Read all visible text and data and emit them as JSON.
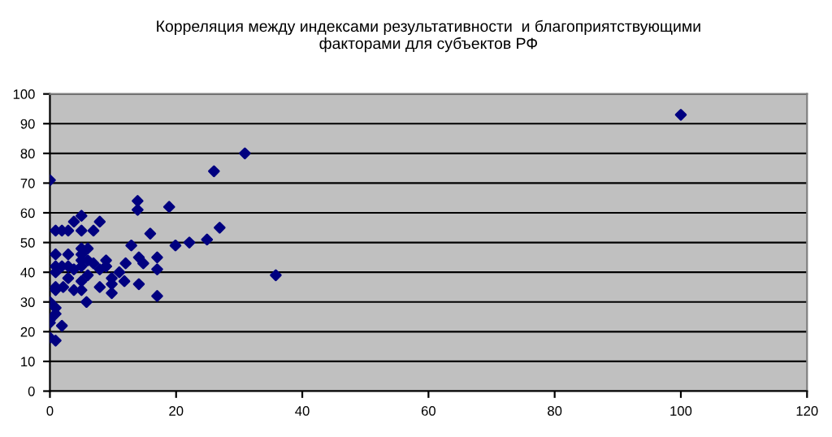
{
  "chart_data": {
    "type": "scatter",
    "title": "Корреляция между индексами результативности  и благоприятствующими\nфакторами для субъектов РФ",
    "x": [
      0,
      0,
      0,
      0,
      0,
      0.9,
      0.9,
      0.9,
      0.9,
      0.9,
      0.9,
      0.9,
      0.9,
      0.9,
      1.9,
      2.9,
      2.1,
      1.9,
      1.9,
      2.9,
      2.9,
      2.9,
      3.8,
      3.8,
      3.8,
      5,
      5,
      5,
      5,
      5,
      5,
      5,
      5,
      5.8,
      6,
      6,
      6,
      6.9,
      6.9,
      7.9,
      7.9,
      7.9,
      8.9,
      8.9,
      8.9,
      9.8,
      9.8,
      9.8,
      11,
      11.8,
      12,
      12.9,
      13.9,
      13.9,
      14.1,
      14.1,
      14.8,
      15.9,
      17,
      17,
      17,
      18.9,
      19.9,
      22.1,
      24.9,
      26,
      26.9,
      30.9,
      35.8,
      100
    ],
    "series": [
      {
        "color": "#000080",
        "values": [
          71,
          30,
          24,
          23,
          18,
          17,
          26,
          28,
          34,
          35,
          40,
          42,
          46,
          54,
          54,
          54,
          35,
          22,
          42,
          42,
          38,
          46,
          57,
          41,
          34,
          59,
          54,
          48,
          46,
          44,
          42,
          37,
          34,
          30,
          48,
          44,
          39,
          54,
          43,
          57,
          41,
          35,
          44,
          42,
          42,
          38,
          33,
          36,
          40,
          37,
          43,
          49,
          64,
          61,
          45,
          36,
          43,
          53,
          45,
          41,
          32,
          62,
          49,
          50,
          51,
          74,
          55,
          80,
          39,
          93
        ]
      }
    ],
    "xlim": [
      0,
      120
    ],
    "xticks": [
      0,
      20,
      40,
      60,
      80,
      100,
      120
    ],
    "ylim": [
      0,
      100
    ],
    "yticks": [
      0,
      10,
      20,
      30,
      40,
      50,
      60,
      70,
      80,
      90,
      100
    ],
    "grid": "y",
    "marker": "diamond"
  }
}
